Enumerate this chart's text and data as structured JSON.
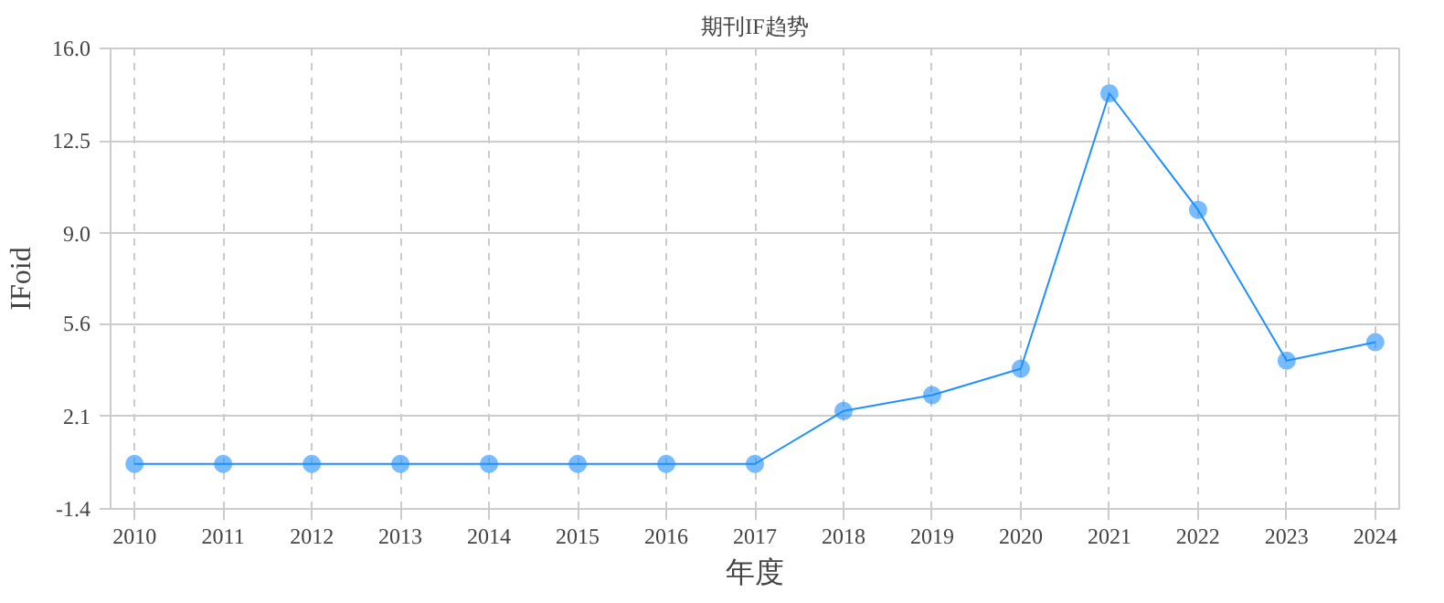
{
  "chart_data": {
    "type": "line",
    "title": "期刊IF趋势",
    "xlabel": "年度",
    "ylabel": "IFoid",
    "categories": [
      "2010",
      "2011",
      "2012",
      "2013",
      "2014",
      "2015",
      "2016",
      "2017",
      "2018",
      "2019",
      "2020",
      "2021",
      "2022",
      "2023",
      "2024"
    ],
    "series": [
      {
        "color": "#1e90ff",
        "values": [
          0.3,
          0.3,
          0.3,
          0.3,
          0.3,
          0.3,
          0.3,
          0.3,
          2.3,
          2.9,
          3.9,
          14.3,
          9.9,
          4.2,
          4.9
        ]
      }
    ],
    "ylim": [
      -1.4,
      16.0
    ],
    "yticks": [
      {
        "value": -1.4,
        "label": "-1.4"
      },
      {
        "value": 2.1,
        "label": "2.1"
      },
      {
        "value": 5.6,
        "label": "5.6"
      },
      {
        "value": 9.0,
        "label": "9.0"
      },
      {
        "value": 12.5,
        "label": "12.5"
      },
      {
        "value": 16.0,
        "label": "16.0"
      }
    ],
    "grid": true,
    "marker": "circle",
    "line_style": "solid"
  }
}
